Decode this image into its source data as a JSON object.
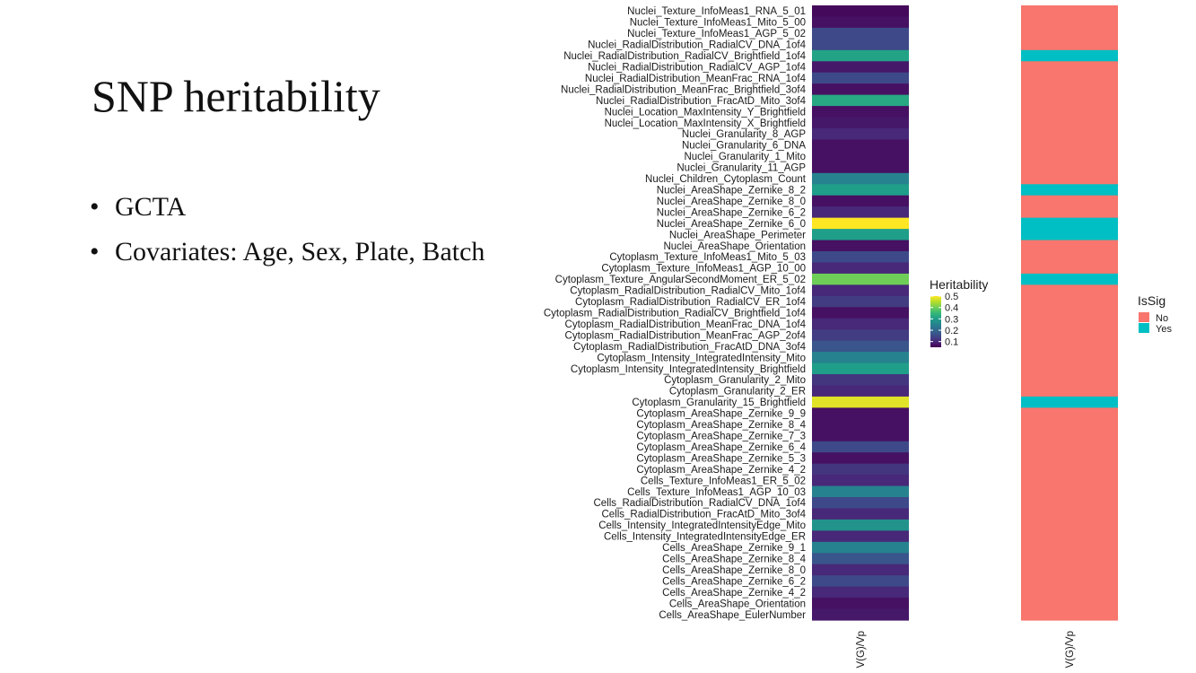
{
  "slide": {
    "title": "SNP heritability",
    "bullets": [
      "GCTA",
      "Covariates: Age, Sex, Plate, Batch"
    ]
  },
  "colors": {
    "viridis": [
      "#440154",
      "#482878",
      "#3e4989",
      "#31688e",
      "#26828e",
      "#1f9e89",
      "#35b779",
      "#6ece58",
      "#b5de2b",
      "#fde725"
    ],
    "sig_no": "#F8766D",
    "sig_yes": "#00BFC4"
  },
  "chart_data": [
    {
      "type": "heatmap",
      "xlabel": "V(G)/Vp",
      "legend_title": "Heritability",
      "legend_ticks": [
        0.5,
        0.4,
        0.3,
        0.2,
        0.1
      ],
      "color_range": [
        0.05,
        0.5
      ],
      "categories": [
        "Nuclei_Texture_InfoMeas1_RNA_5_01",
        "Nuclei_Texture_InfoMeas1_Mito_5_00",
        "Nuclei_Texture_InfoMeas1_AGP_5_02",
        "Nuclei_RadialDistribution_RadialCV_DNA_1of4",
        "Nuclei_RadialDistribution_RadialCV_Brightfield_1of4",
        "Nuclei_RadialDistribution_RadialCV_AGP_1of4",
        "Nuclei_RadialDistribution_MeanFrac_RNA_1of4",
        "Nuclei_RadialDistribution_MeanFrac_Brightfield_3of4",
        "Nuclei_RadialDistribution_FracAtD_Mito_3of4",
        "Nuclei_Location_MaxIntensity_Y_Brightfield",
        "Nuclei_Location_MaxIntensity_X_Brightfield",
        "Nuclei_Granularity_8_AGP",
        "Nuclei_Granularity_6_DNA",
        "Nuclei_Granularity_1_Mito",
        "Nuclei_Granularity_11_AGP",
        "Nuclei_Children_Cytoplasm_Count",
        "Nuclei_AreaShape_Zernike_8_2",
        "Nuclei_AreaShape_Zernike_8_0",
        "Nuclei_AreaShape_Zernike_6_2",
        "Nuclei_AreaShape_Zernike_6_0",
        "Nuclei_AreaShape_Perimeter",
        "Nuclei_AreaShape_Orientation",
        "Cytoplasm_Texture_InfoMeas1_Mito_5_03",
        "Cytoplasm_Texture_InfoMeas1_AGP_10_00",
        "Cytoplasm_Texture_AngularSecondMoment_ER_5_02",
        "Cytoplasm_RadialDistribution_RadialCV_Mito_1of4",
        "Cytoplasm_RadialDistribution_RadialCV_ER_1of4",
        "Cytoplasm_RadialDistribution_RadialCV_Brightfield_1of4",
        "Cytoplasm_RadialDistribution_MeanFrac_DNA_1of4",
        "Cytoplasm_RadialDistribution_MeanFrac_AGP_2of4",
        "Cytoplasm_RadialDistribution_FracAtD_DNA_3of4",
        "Cytoplasm_Intensity_IntegratedIntensity_Mito",
        "Cytoplasm_Intensity_IntegratedIntensity_Brightfield",
        "Cytoplasm_Granularity_2_Mito",
        "Cytoplasm_Granularity_2_ER",
        "Cytoplasm_Granularity_15_Brightfield",
        "Cytoplasm_AreaShape_Zernike_9_9",
        "Cytoplasm_AreaShape_Zernike_8_4",
        "Cytoplasm_AreaShape_Zernike_7_3",
        "Cytoplasm_AreaShape_Zernike_6_4",
        "Cytoplasm_AreaShape_Zernike_5_3",
        "Cytoplasm_AreaShape_Zernike_4_2",
        "Cells_Texture_InfoMeas1_ER_5_02",
        "Cells_Texture_InfoMeas1_AGP_10_03",
        "Cells_RadialDistribution_RadialCV_DNA_1of4",
        "Cells_RadialDistribution_FracAtD_Mito_3of4",
        "Cells_Intensity_IntegratedIntensityEdge_Mito",
        "Cells_Intensity_IntegratedIntensityEdge_ER",
        "Cells_AreaShape_Zernike_9_1",
        "Cells_AreaShape_Zernike_8_4",
        "Cells_AreaShape_Zernike_8_0",
        "Cells_AreaShape_Zernike_6_2",
        "Cells_AreaShape_Zernike_4_2",
        "Cells_AreaShape_Orientation",
        "Cells_AreaShape_EulerNumber"
      ],
      "values": [
        0.06,
        0.07,
        0.15,
        0.15,
        0.31,
        0.08,
        0.15,
        0.07,
        0.32,
        0.07,
        0.08,
        0.1,
        0.07,
        0.07,
        0.07,
        0.25,
        0.3,
        0.07,
        0.1,
        0.5,
        0.3,
        0.07,
        0.15,
        0.1,
        0.4,
        0.1,
        0.13,
        0.07,
        0.1,
        0.13,
        0.17,
        0.25,
        0.3,
        0.12,
        0.1,
        0.48,
        0.07,
        0.07,
        0.07,
        0.15,
        0.07,
        0.12,
        0.1,
        0.25,
        0.15,
        0.1,
        0.28,
        0.1,
        0.25,
        0.17,
        0.1,
        0.15,
        0.1,
        0.07,
        0.08
      ]
    },
    {
      "type": "heatmap",
      "xlabel": "V(G)/Vp",
      "legend_title": "IsSig",
      "legend_entries": [
        "No",
        "Yes"
      ],
      "values": [
        "No",
        "No",
        "No",
        "No",
        "Yes",
        "No",
        "No",
        "No",
        "No",
        "No",
        "No",
        "No",
        "No",
        "No",
        "No",
        "No",
        "Yes",
        "No",
        "No",
        "Yes",
        "Yes",
        "No",
        "No",
        "No",
        "Yes",
        "No",
        "No",
        "No",
        "No",
        "No",
        "No",
        "No",
        "No",
        "No",
        "No",
        "Yes",
        "No",
        "No",
        "No",
        "No",
        "No",
        "No",
        "No",
        "No",
        "No",
        "No",
        "No",
        "No",
        "No",
        "No",
        "No",
        "No",
        "No",
        "No",
        "No"
      ]
    }
  ]
}
